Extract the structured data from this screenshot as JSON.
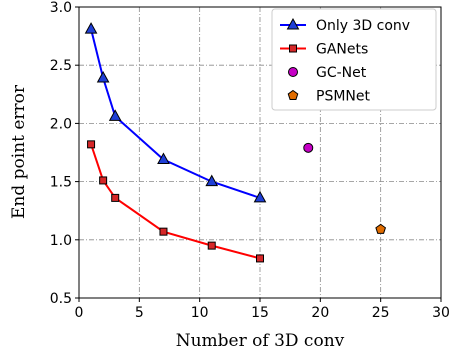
{
  "chart_data": {
    "type": "line",
    "xlabel": "Number of 3D conv",
    "ylabel": "End point error",
    "xlim": [
      0,
      30
    ],
    "ylim": [
      0.5,
      3.0
    ],
    "xticks": [
      "0",
      "5",
      "10",
      "15",
      "20",
      "25",
      "30"
    ],
    "yticks": [
      "0.5",
      "1.0",
      "1.5",
      "2.0",
      "2.5",
      "3.0"
    ],
    "grid": true,
    "legend_position": "top-right",
    "series": [
      {
        "name": "Only 3D conv",
        "kind": "line",
        "marker": "triangle",
        "color": "#0000ff",
        "marker_fill": "#1f3fd6",
        "x": [
          1,
          2,
          3,
          7,
          11,
          15
        ],
        "y": [
          2.81,
          2.39,
          2.06,
          1.69,
          1.5,
          1.36
        ]
      },
      {
        "name": "GANets",
        "kind": "line",
        "marker": "square",
        "color": "#ff0000",
        "marker_fill": "#d62728",
        "x": [
          1,
          2,
          3,
          7,
          11,
          15
        ],
        "y": [
          1.82,
          1.51,
          1.36,
          1.07,
          0.95,
          0.84
        ]
      },
      {
        "name": "GC-Net",
        "kind": "point",
        "marker": "circle",
        "color": "#c600c6",
        "marker_fill": "#c600c6",
        "x": [
          19
        ],
        "y": [
          1.79
        ]
      },
      {
        "name": "PSMNet",
        "kind": "point",
        "marker": "pentagon",
        "color": "#e06c00",
        "marker_fill": "#e06c00",
        "x": [
          25
        ],
        "y": [
          1.09
        ]
      }
    ]
  }
}
